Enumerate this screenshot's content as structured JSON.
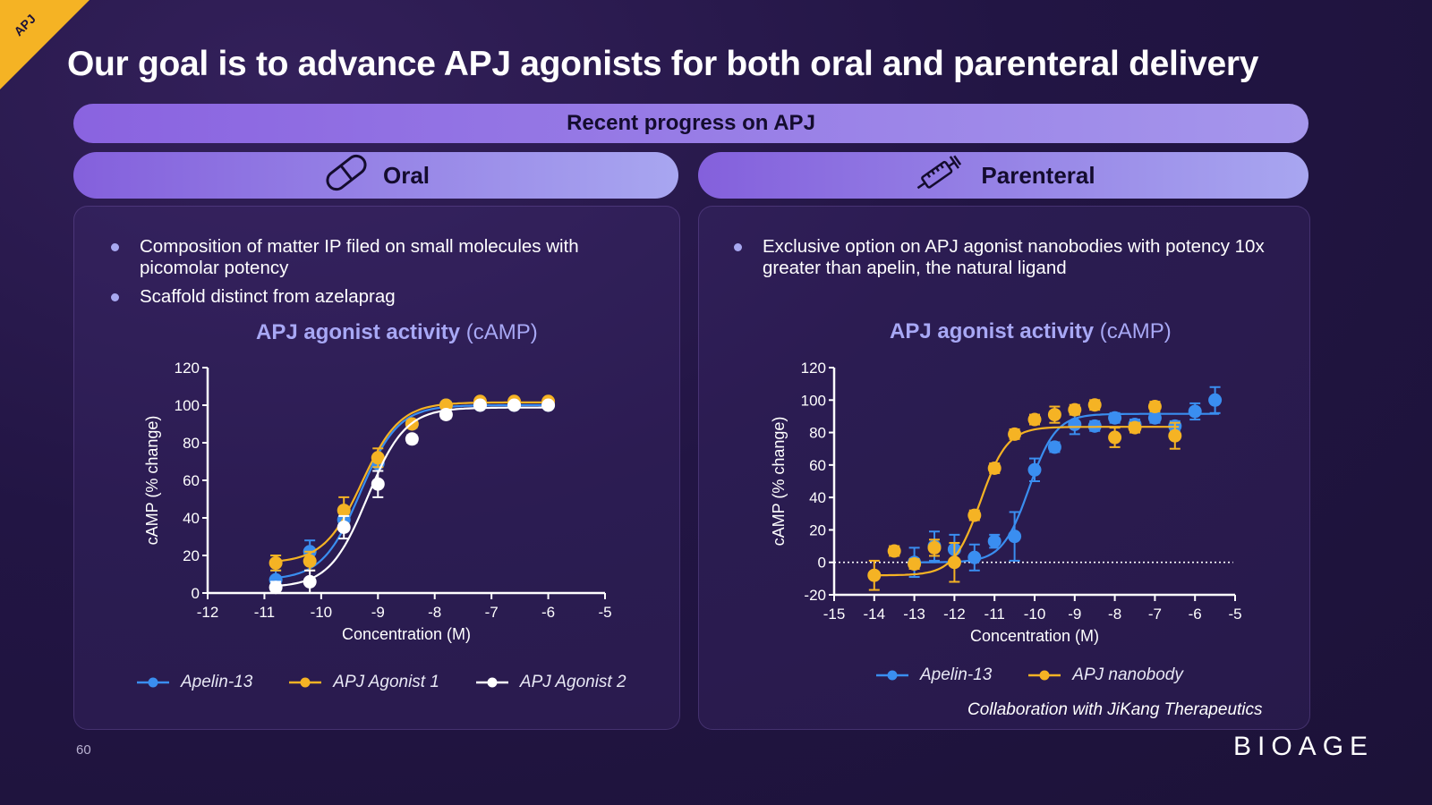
{
  "corner_tag": "APJ",
  "title": "Our goal is to advance APJ agonists for both oral and parenteral delivery",
  "banner": "Recent progress on APJ",
  "oral": {
    "header": "Oral",
    "icon": "pill-icon",
    "bullets": [
      "Composition of matter IP filed on small molecules with picomolar potency",
      "Scaffold distinct from azelaprag"
    ],
    "chart_title": "APJ agonist activity",
    "chart_title_sub": "(cAMP)"
  },
  "parenteral": {
    "header": "Parenteral",
    "icon": "syringe-icon",
    "bullets": [
      "Exclusive option on APJ agonist nanobodies with potency 10x greater than apelin, the natural ligand"
    ],
    "chart_title": "APJ agonist activity",
    "chart_title_sub": "(cAMP)",
    "collaboration": "Collaboration with JiKang Therapeutics"
  },
  "chart_data": [
    {
      "type": "scatter",
      "title": "APJ agonist activity (cAMP)",
      "xlabel": "Concentration (M)",
      "ylabel": "cAMP (% change)",
      "xlim": [
        -12,
        -5
      ],
      "ylim": [
        0,
        120
      ],
      "xticks": [
        -12,
        -11,
        -10,
        -9,
        -8,
        -7,
        -6,
        -5
      ],
      "yticks": [
        0,
        20,
        40,
        60,
        80,
        100,
        120
      ],
      "legend_position": "bottom",
      "fit": "sigmoidal dose-response curve per series",
      "series": [
        {
          "name": "Apelin-13",
          "color": "#3a8ef0",
          "x": [
            -10.8,
            -10.2,
            -9.6,
            -9.0,
            -8.4,
            -7.8,
            -7.2,
            -6.6,
            -6.0
          ],
          "y": [
            7,
            22,
            39,
            69,
            90,
            100,
            100,
            100,
            100
          ],
          "err": [
            5,
            6,
            4,
            4,
            2,
            2,
            1,
            1,
            1
          ]
        },
        {
          "name": "APJ Agonist 1",
          "color": "#f5b324",
          "x": [
            -10.8,
            -10.2,
            -9.6,
            -9.0,
            -8.4,
            -7.8,
            -7.2,
            -6.6,
            -6.0
          ],
          "y": [
            16,
            17,
            44,
            72,
            90,
            100,
            102,
            102,
            102
          ],
          "err": [
            4,
            5,
            7,
            5,
            2,
            1,
            1,
            1,
            1
          ]
        },
        {
          "name": "APJ Agonist 2",
          "color": "#ffffff",
          "x": [
            -10.8,
            -10.2,
            -9.6,
            -9.0,
            -8.4,
            -7.8,
            -7.2,
            -6.6,
            -6.0
          ],
          "y": [
            3,
            6,
            35,
            58,
            82,
            95,
            100,
            100,
            100
          ],
          "err": [
            3,
            6,
            6,
            7,
            2,
            2,
            1,
            1,
            1
          ]
        }
      ]
    },
    {
      "type": "scatter",
      "title": "APJ agonist activity (cAMP)",
      "xlabel": "Concentration (M)",
      "ylabel": "cAMP (% change)",
      "xlim": [
        -15,
        -5
      ],
      "ylim": [
        -20,
        120
      ],
      "xticks": [
        -15,
        -14,
        -13,
        -12,
        -11,
        -10,
        -9,
        -8,
        -7,
        -6,
        -5
      ],
      "yticks": [
        -20,
        0,
        20,
        40,
        60,
        80,
        100,
        120
      ],
      "legend_position": "bottom",
      "fit": "sigmoidal dose-response curve per series",
      "series": [
        {
          "name": "Apelin-13",
          "color": "#3a8ef0",
          "x": [
            -13.0,
            -12.5,
            -12.0,
            -11.5,
            -11.0,
            -10.5,
            -10.0,
            -9.5,
            -9.0,
            -8.5,
            -8.0,
            -7.5,
            -7.0,
            -6.5,
            -6.0,
            -5.5
          ],
          "y": [
            0,
            10,
            8,
            3,
            13,
            16,
            57,
            71,
            85,
            84,
            89,
            85,
            89,
            84,
            93,
            100
          ],
          "err": [
            9,
            9,
            9,
            8,
            4,
            15,
            7,
            3,
            6,
            3,
            3,
            3,
            3,
            3,
            5,
            8
          ]
        },
        {
          "name": "APJ nanobody",
          "color": "#f5b324",
          "x": [
            -14.0,
            -13.5,
            -13.0,
            -12.5,
            -12.0,
            -11.5,
            -11.0,
            -10.5,
            -10.0,
            -9.5,
            -9.0,
            -8.5,
            -8.0,
            -7.5,
            -7.0,
            -6.5
          ],
          "y": [
            -8,
            7,
            -1,
            9,
            0,
            29,
            58,
            79,
            88,
            91,
            94,
            97,
            77,
            83,
            96,
            78
          ],
          "err": [
            9,
            3,
            3,
            5,
            12,
            3,
            3,
            3,
            3,
            5,
            3,
            3,
            6,
            3,
            3,
            8
          ]
        }
      ]
    }
  ],
  "legend_oral": [
    "Apelin-13",
    "APJ Agonist 1",
    "APJ Agonist 2"
  ],
  "legend_parenteral": [
    "Apelin-13",
    "APJ nanobody"
  ],
  "page_number": "60",
  "logo": "BIOAGE"
}
